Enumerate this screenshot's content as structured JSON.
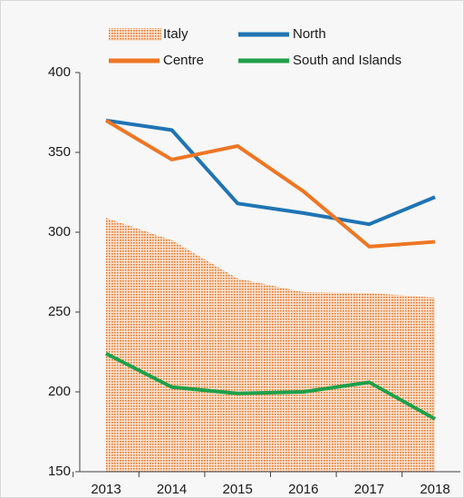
{
  "chart_data": {
    "type": "line",
    "categories": [
      "2013",
      "2014",
      "2015",
      "2016",
      "2017",
      "2018"
    ],
    "series": [
      {
        "name": "Italy",
        "color": "#e8762c",
        "style": "area",
        "values": [
          309,
          295,
          271,
          262.5,
          262,
          259
        ]
      },
      {
        "name": "North",
        "color": "#1f74b4",
        "values": [
          370,
          364,
          318,
          312,
          305,
          322
        ]
      },
      {
        "name": "Centre",
        "color": "#ee7623",
        "values": [
          370,
          345.5,
          354,
          325.6,
          291,
          294
        ]
      },
      {
        "name": "South and Islands",
        "color": "#1fa04a",
        "values": [
          224,
          203,
          199,
          200,
          206,
          183
        ]
      }
    ],
    "ylim": [
      150,
      400
    ],
    "yticks": [
      150,
      200,
      250,
      300,
      350,
      400
    ]
  }
}
